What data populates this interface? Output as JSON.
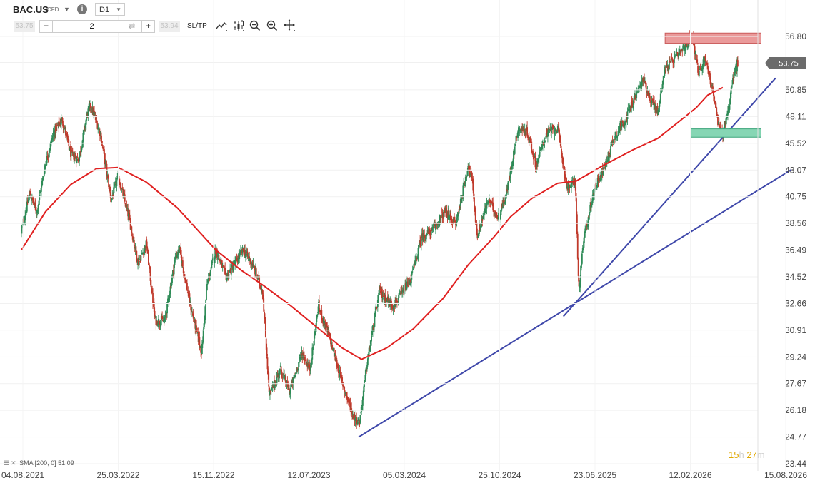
{
  "header": {
    "symbol": "BAC.US",
    "instrument_type": "CFD",
    "timeframe": "D1",
    "bid": "53.75",
    "ask": "53.94",
    "quantity": "2",
    "sltp_label": "SL/TP",
    "icons": [
      "info-icon",
      "chevron-down-icon",
      "swap-icon",
      "line-chart-icon",
      "candlestick-icon",
      "zoom-out-icon",
      "zoom-in-icon",
      "crosshair-icon"
    ]
  },
  "legend": {
    "label": "SMA [200, 0] 51.09"
  },
  "timer": {
    "hours": "15",
    "h_unit": "h",
    "minutes": "27",
    "m_unit": "m"
  },
  "chart_data": {
    "type": "candlestick",
    "symbol": "BAC.US",
    "timeframe": "D1",
    "last_price": 53.75,
    "y_ticks": [
      56.8,
      53.75,
      50.85,
      48.11,
      45.52,
      43.07,
      40.75,
      38.56,
      36.49,
      34.52,
      32.66,
      30.91,
      29.24,
      27.67,
      26.18,
      24.77,
      23.44
    ],
    "y_tick_labels": [
      "56.80",
      "53.75",
      "50.85",
      "48.11",
      "45.52",
      "43.07",
      "40.75",
      "38.56",
      "36.49",
      "34.52",
      "32.66",
      "30.91",
      "29.24",
      "27.67",
      "26.18",
      "24.77",
      "23.44"
    ],
    "x_tick_labels": [
      "04.08.2021",
      "25.03.2022",
      "15.11.2022",
      "12.07.2023",
      "05.03.2024",
      "25.10.2024",
      "23.06.2025",
      "12.02.2026",
      "15.08.2026"
    ],
    "price_path": [
      [
        "2021-08-04",
        38.0
      ],
      [
        "2021-08-24",
        41.0
      ],
      [
        "2021-09-10",
        39.5
      ],
      [
        "2021-09-30",
        43.5
      ],
      [
        "2021-10-20",
        46.5
      ],
      [
        "2021-11-10",
        47.8
      ],
      [
        "2021-12-01",
        44.5
      ],
      [
        "2021-12-20",
        44.0
      ],
      [
        "2022-01-10",
        48.5
      ],
      [
        "2022-01-18",
        49.2
      ],
      [
        "2022-02-10",
        46.5
      ],
      [
        "2022-03-08",
        40.5
      ],
      [
        "2022-03-25",
        42.5
      ],
      [
        "2022-04-20",
        39.0
      ],
      [
        "2022-05-12",
        35.5
      ],
      [
        "2022-06-01",
        37.0
      ],
      [
        "2022-06-22",
        31.5
      ],
      [
        "2022-07-15",
        31.5
      ],
      [
        "2022-08-10",
        36.0
      ],
      [
        "2022-08-20",
        36.5
      ],
      [
        "2022-09-15",
        32.5
      ],
      [
        "2022-10-12",
        29.5
      ],
      [
        "2022-10-25",
        34.0
      ],
      [
        "2022-11-15",
        36.5
      ],
      [
        "2022-12-10",
        34.5
      ],
      [
        "2023-01-20",
        36.5
      ],
      [
        "2023-02-10",
        35.5
      ],
      [
        "2023-03-08",
        33.5
      ],
      [
        "2023-03-24",
        27.0
      ],
      [
        "2023-04-20",
        28.5
      ],
      [
        "2023-05-12",
        27.2
      ],
      [
        "2023-06-10",
        29.5
      ],
      [
        "2023-06-30",
        28.5
      ],
      [
        "2023-07-20",
        32.5
      ],
      [
        "2023-08-15",
        30.5
      ],
      [
        "2023-09-12",
        28.0
      ],
      [
        "2023-10-10",
        26.0
      ],
      [
        "2023-10-27",
        25.5
      ],
      [
        "2023-11-15",
        29.0
      ],
      [
        "2023-12-14",
        33.5
      ],
      [
        "2024-01-15",
        32.5
      ],
      [
        "2024-02-10",
        33.5
      ],
      [
        "2024-02-29",
        34.5
      ],
      [
        "2024-03-25",
        37.5
      ],
      [
        "2024-04-20",
        38.0
      ],
      [
        "2024-05-20",
        39.5
      ],
      [
        "2024-06-15",
        38.5
      ],
      [
        "2024-07-15",
        43.5
      ],
      [
        "2024-07-25",
        42.0
      ],
      [
        "2024-08-05",
        37.5
      ],
      [
        "2024-09-01",
        40.5
      ],
      [
        "2024-09-25",
        39.0
      ],
      [
        "2024-10-15",
        41.0
      ],
      [
        "2024-11-12",
        47.0
      ],
      [
        "2024-12-05",
        46.5
      ],
      [
        "2024-12-25",
        43.5
      ],
      [
        "2025-01-20",
        46.5
      ],
      [
        "2025-02-15",
        47.0
      ],
      [
        "2025-03-10",
        41.5
      ],
      [
        "2025-03-30",
        42.0
      ],
      [
        "2025-04-07",
        33.5
      ],
      [
        "2025-04-20",
        37.5
      ],
      [
        "2025-05-15",
        41.5
      ],
      [
        "2025-06-10",
        43.5
      ],
      [
        "2025-06-30",
        46.0
      ],
      [
        "2025-07-30",
        48.0
      ],
      [
        "2025-08-25",
        50.5
      ],
      [
        "2025-09-10",
        52.0
      ],
      [
        "2025-09-25",
        50.0
      ],
      [
        "2025-10-15",
        48.5
      ],
      [
        "2025-10-30",
        53.0
      ],
      [
        "2025-11-20",
        54.0
      ],
      [
        "2025-12-10",
        55.0
      ],
      [
        "2025-12-30",
        56.5
      ],
      [
        "2026-01-06",
        57.0
      ],
      [
        "2026-01-15",
        54.0
      ],
      [
        "2026-01-22",
        52.5
      ],
      [
        "2026-02-05",
        54.5
      ],
      [
        "2026-02-25",
        50.5
      ],
      [
        "2026-03-10",
        47.0
      ],
      [
        "2026-03-20",
        46.5
      ],
      [
        "2026-04-05",
        49.5
      ],
      [
        "2026-04-15",
        52.5
      ],
      [
        "2026-04-25",
        53.75
      ]
    ],
    "sma_200_path": [
      [
        "2021-08-04",
        36.5
      ],
      [
        "2021-10-01",
        39.5
      ],
      [
        "2021-12-01",
        41.8
      ],
      [
        "2022-02-01",
        43.2
      ],
      [
        "2022-03-25",
        43.3
      ],
      [
        "2022-06-01",
        42.0
      ],
      [
        "2022-08-15",
        39.8
      ],
      [
        "2022-11-15",
        36.5
      ],
      [
        "2023-01-15",
        35.0
      ],
      [
        "2023-03-15",
        33.8
      ],
      [
        "2023-05-15",
        32.5
      ],
      [
        "2023-07-12",
        31.2
      ],
      [
        "2023-09-15",
        29.8
      ],
      [
        "2023-11-01",
        29.1
      ],
      [
        "2024-01-01",
        29.8
      ],
      [
        "2024-03-05",
        31.0
      ],
      [
        "2024-05-15",
        33.0
      ],
      [
        "2024-07-15",
        35.4
      ],
      [
        "2024-09-15",
        37.5
      ],
      [
        "2024-10-25",
        39.1
      ],
      [
        "2024-12-15",
        40.6
      ],
      [
        "2025-02-15",
        41.9
      ],
      [
        "2025-04-01",
        42.1
      ],
      [
        "2025-06-01",
        43.4
      ],
      [
        "2025-08-15",
        44.9
      ],
      [
        "2025-10-15",
        46.0
      ],
      [
        "2025-12-01",
        47.5
      ],
      [
        "2026-01-15",
        49.0
      ],
      [
        "2026-02-12",
        50.3
      ],
      [
        "2026-03-20",
        51.09
      ]
    ],
    "sma_200_last": 51.09,
    "trend_lines": [
      {
        "from": [
          "2023-10-25",
          24.77
        ],
        "to": [
          "2026-09-01",
          43.1
        ]
      },
      {
        "from": [
          "2025-03-01",
          31.8
        ],
        "to": [
          "2026-07-25",
          52.1
        ]
      }
    ],
    "zones": [
      {
        "type": "resistance",
        "x_from": "2025-11-01",
        "x_to": "2026-06-20",
        "y_from": 56.0,
        "y_to": 57.2,
        "color": "#ea9a9a"
      },
      {
        "type": "support",
        "x_from": "2026-01-01",
        "x_to": "2026-06-20",
        "y_from": 46.1,
        "y_to": 46.9,
        "color": "#86d6b4"
      }
    ],
    "colors": {
      "bull": "#2e8b57",
      "bear": "#c0392b",
      "sma": "#e02020",
      "trend": "#3f48aa"
    }
  }
}
